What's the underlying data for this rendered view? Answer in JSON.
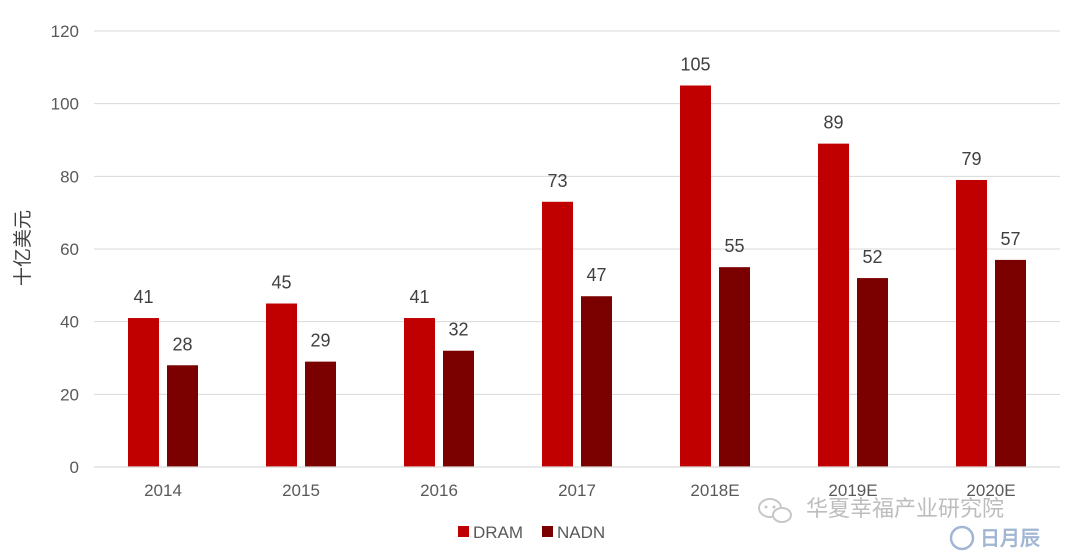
{
  "chart_data": {
    "type": "bar",
    "categories": [
      "2014",
      "2015",
      "2016",
      "2017",
      "2018E",
      "2019E",
      "2020E"
    ],
    "series": [
      {
        "name": "DRAM",
        "values": [
          41,
          45,
          41,
          73,
          105,
          89,
          79
        ],
        "color": "#c00000"
      },
      {
        "name": "NADN",
        "values": [
          28,
          29,
          32,
          47,
          55,
          52,
          57
        ],
        "color": "#7b0000"
      }
    ],
    "ylabel": "十亿美元",
    "ylim": [
      0,
      120
    ],
    "yticks": [
      0,
      20,
      40,
      60,
      80,
      100,
      120
    ],
    "grid": true,
    "legend": "bottom-center",
    "data_labels": true
  },
  "watermark": {
    "text": "华夏幸福产业研究院",
    "secondary": "日月辰"
  }
}
